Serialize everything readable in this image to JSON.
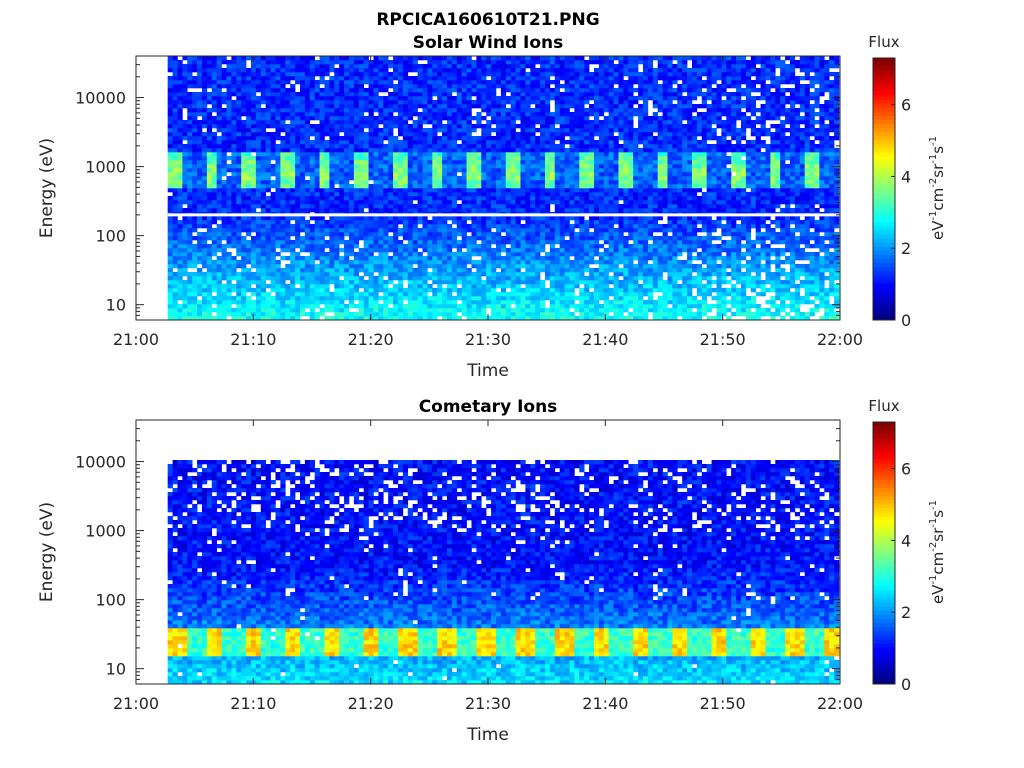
{
  "figure": {
    "title": "RPCICA160610T21.PNG"
  },
  "colormap": [
    "#000080",
    "#0000ff",
    "#0080ff",
    "#00ffff",
    "#80ff80",
    "#ffff00",
    "#ff8000",
    "#ff0000",
    "#800000"
  ],
  "chart_data": [
    {
      "type": "heatmap",
      "title": "Solar Wind Ions",
      "xlabel": "Time",
      "ylabel": "Energy (eV)",
      "x_ticks": [
        "21:00",
        "21:10",
        "21:20",
        "21:30",
        "21:40",
        "21:50",
        "22:00"
      ],
      "x_range": [
        "21:00",
        "22:00"
      ],
      "y_scale": "log",
      "y_ticks": [
        "10",
        "100",
        "1000",
        "10000"
      ],
      "y_range": [
        6,
        40000
      ],
      "data_start": "21:02.7",
      "colorbar": {
        "label": "Flux",
        "units": "eV-1cm-2sr-1s-1",
        "ticks": [
          "0",
          "2",
          "4",
          "6"
        ],
        "range": [
          0,
          7.3
        ]
      },
      "features": {
        "background_flux": 1.2,
        "pulse_energy_eV": [
          500,
          1600
        ],
        "pulse_peak_flux": 3.8,
        "pulse_period_min": 3.2,
        "gap_line_energy_eV": 200,
        "low_energy_flux": 2.3
      }
    },
    {
      "type": "heatmap",
      "title": "Cometary Ions",
      "xlabel": "Time",
      "ylabel": "Energy (eV)",
      "x_ticks": [
        "21:00",
        "21:10",
        "21:20",
        "21:30",
        "21:40",
        "21:50",
        "22:00"
      ],
      "x_range": [
        "21:00",
        "22:00"
      ],
      "y_scale": "log",
      "y_ticks": [
        "10",
        "100",
        "1000",
        "10000"
      ],
      "y_range": [
        6,
        40000
      ],
      "data_start": "21:02.7",
      "colorbar": {
        "label": "Flux",
        "units": "eV-1cm-2sr-1s-1",
        "ticks": [
          "0",
          "2",
          "4",
          "6"
        ],
        "range": [
          0,
          7.3
        ]
      },
      "features": {
        "data_max_energy_eV": 11000,
        "background_flux": 1.0,
        "band_energy_eV": [
          15,
          40
        ],
        "band_peak_flux": 4.8,
        "band_period_min": 3.3,
        "low_energy_flux": 2.6
      }
    }
  ]
}
